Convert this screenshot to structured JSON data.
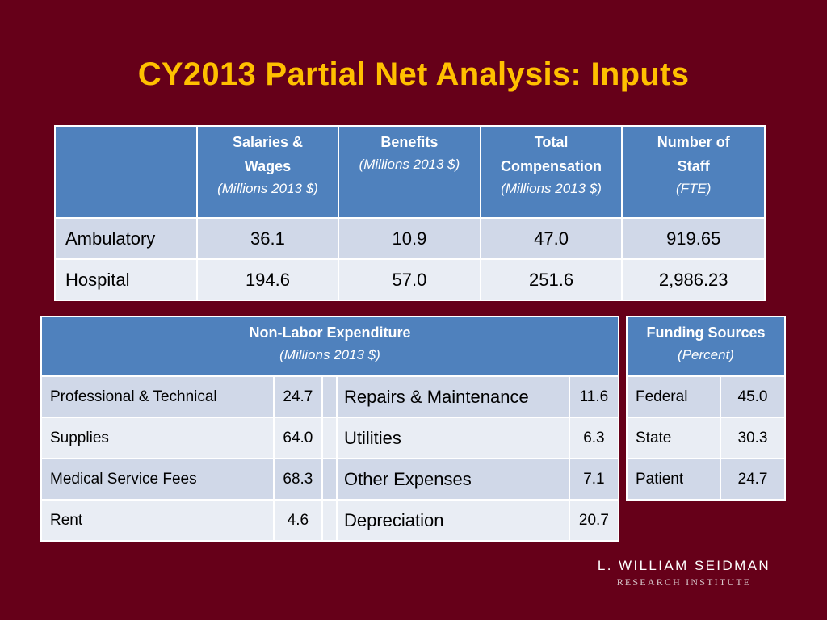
{
  "title": "CY2013 Partial Net Analysis: Inputs",
  "inputs": {
    "headers": [
      {
        "line1": "Salaries &",
        "line2": "Wages",
        "sub": "(Millions 2013 $)"
      },
      {
        "line1": "Benefits",
        "line2": "",
        "sub": "(Millions 2013 $)"
      },
      {
        "line1": "Total",
        "line2": "Compensation",
        "sub": "(Millions 2013 $)"
      },
      {
        "line1": "Number of",
        "line2": "Staff",
        "sub": "(FTE)"
      }
    ],
    "rows": [
      {
        "label": "Ambulatory",
        "values": [
          "36.1",
          "10.9",
          "47.0",
          "919.65"
        ]
      },
      {
        "label": "Hospital",
        "values": [
          "194.6",
          "57.0",
          "251.6",
          "2,986.23"
        ]
      }
    ]
  },
  "nonlabor": {
    "title": "Non-Labor Expenditure",
    "sub": "(Millions 2013 $)",
    "rows": [
      {
        "left_label": "Professional & Technical",
        "left_value": "24.7",
        "right_label": "Repairs & Maintenance",
        "right_value": "11.6"
      },
      {
        "left_label": "Supplies",
        "left_value": "64.0",
        "right_label": "Utilities",
        "right_value": "6.3"
      },
      {
        "left_label": "Medical Service Fees",
        "left_value": "68.3",
        "right_label": "Other Expenses",
        "right_value": "7.1"
      },
      {
        "left_label": "Rent",
        "left_value": "4.6",
        "right_label": "Depreciation",
        "right_value": "20.7"
      }
    ]
  },
  "funding": {
    "title": "Funding Sources",
    "sub": "(Percent)",
    "rows": [
      {
        "label": "Federal",
        "value": "45.0"
      },
      {
        "label": "State",
        "value": "30.3"
      },
      {
        "label": "Patient",
        "value": "24.7"
      }
    ]
  },
  "logo": {
    "line1": "L. WILLIAM SEIDMAN",
    "line2": "RESEARCH INSTITUTE"
  }
}
